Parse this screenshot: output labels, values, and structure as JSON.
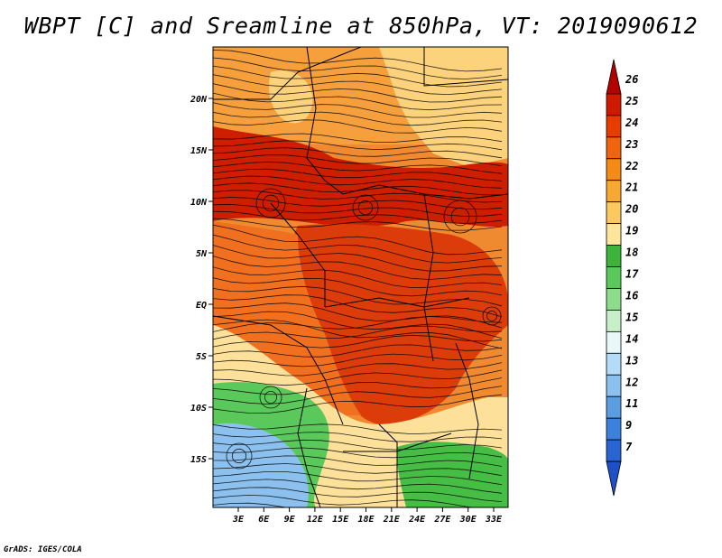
{
  "title": "WBPT [C] and Sreamline at 850hPa, VT: 2019090612",
  "credit": "GrADS: IGES/COLA",
  "lat_ticks": [
    "20N",
    "15N",
    "10N",
    "5N",
    "EQ",
    "5S",
    "10S",
    "15S"
  ],
  "lon_ticks": [
    "3E",
    "6E",
    "9E",
    "12E",
    "15E",
    "18E",
    "21E",
    "24E",
    "27E",
    "30E",
    "33E"
  ],
  "colorbar": {
    "labels": [
      "26",
      "25",
      "24",
      "23",
      "22",
      "21",
      "20",
      "19",
      "18",
      "17",
      "16",
      "15",
      "14",
      "13",
      "12",
      "11",
      "9",
      "7"
    ],
    "colors": [
      "#b40000",
      "#d01a00",
      "#e63c00",
      "#f06410",
      "#f58a14",
      "#f7a830",
      "#fcc860",
      "#fde69c",
      "#3cb43c",
      "#5ac85a",
      "#8cdc8c",
      "#c8f0c8",
      "#e8f8f8",
      "#b4dcf8",
      "#8cc0ee",
      "#5a9ee0",
      "#3c82dc",
      "#2864d2",
      "#1e50c8"
    ]
  },
  "regions": [
    {
      "name": "north-orange-band",
      "color": "#f5a03c"
    },
    {
      "name": "north-yellow-zone",
      "color": "#fcd37c"
    },
    {
      "name": "sahel-red-band",
      "color": "#cd1e00"
    },
    {
      "name": "central-red-zone",
      "color": "#dc3c0a"
    },
    {
      "name": "coastal-orange-zone",
      "color": "#f07020"
    },
    {
      "name": "southern-yellow-zone",
      "color": "#fde09a"
    },
    {
      "name": "southwest-green-zone",
      "color": "#5ac85a"
    },
    {
      "name": "southwest-blue-zone",
      "color": "#8cc0ee"
    },
    {
      "name": "southeast-green-zone",
      "color": "#46be46"
    }
  ]
}
